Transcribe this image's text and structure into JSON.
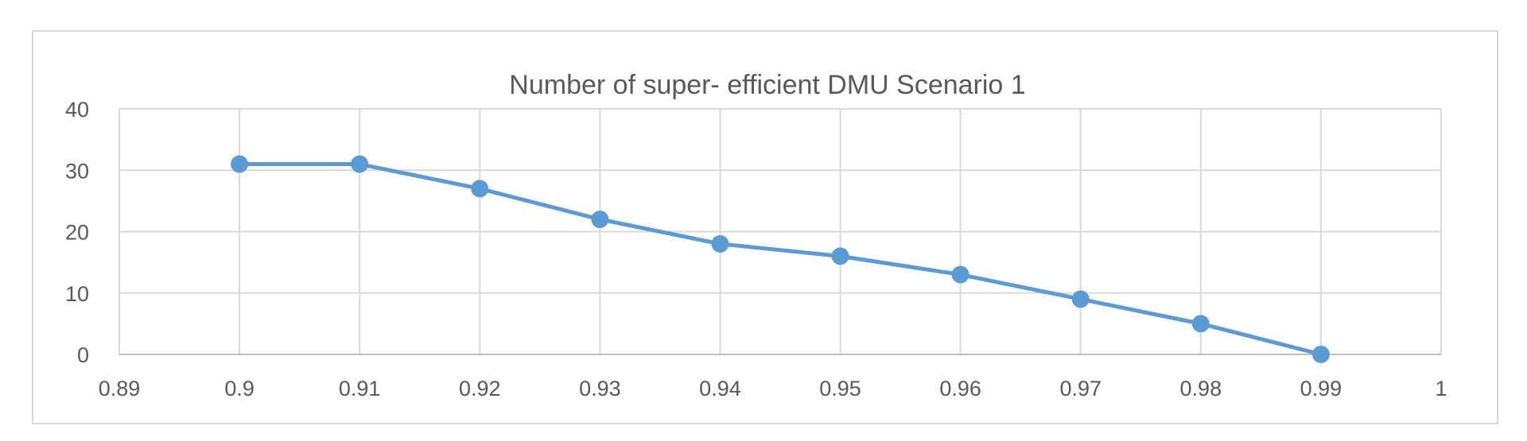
{
  "chart_data": {
    "type": "scatter",
    "title": "Number of super- efficient DMU Scenario 1",
    "xlabel": "",
    "ylabel": "",
    "x": [
      0.9,
      0.91,
      0.92,
      0.93,
      0.94,
      0.95,
      0.96,
      0.97,
      0.98,
      0.99
    ],
    "series": [
      {
        "values": [
          31,
          31,
          27,
          22,
          18,
          16,
          13,
          9,
          5,
          0
        ]
      }
    ],
    "xlim": [
      0.89,
      1
    ],
    "ylim": [
      0,
      40
    ],
    "x_ticks": [
      "0.89",
      "0.9",
      "0.91",
      "0.92",
      "0.93",
      "0.94",
      "0.95",
      "0.96",
      "0.97",
      "0.98",
      "0.99",
      "1"
    ],
    "y_ticks": [
      "0",
      "10",
      "20",
      "30",
      "40"
    ],
    "grid": true,
    "legend": "none",
    "line_style": "straight lines with markers",
    "series_color": "#5b9bd5"
  }
}
